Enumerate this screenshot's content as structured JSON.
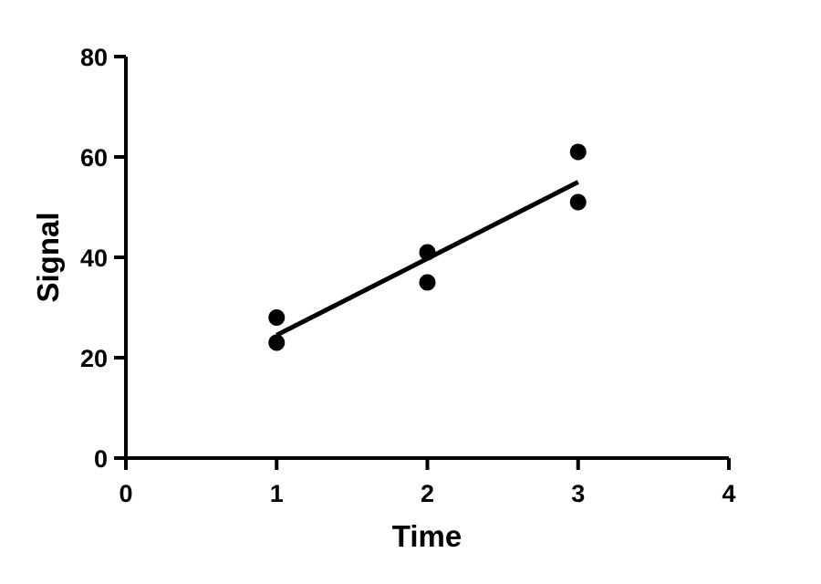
{
  "chart_data": {
    "type": "scatter",
    "title": "",
    "xlabel": "Time",
    "ylabel": "Signal",
    "xlim": [
      0,
      4
    ],
    "ylim": [
      0,
      80
    ],
    "x_ticks": [
      0,
      1,
      2,
      3,
      4
    ],
    "y_ticks": [
      0,
      20,
      40,
      60,
      80
    ],
    "grid": false,
    "legend": "none",
    "points": [
      {
        "x": 1,
        "y": 28
      },
      {
        "x": 1,
        "y": 23
      },
      {
        "x": 2,
        "y": 41
      },
      {
        "x": 2,
        "y": 35
      },
      {
        "x": 3,
        "y": 61
      },
      {
        "x": 3,
        "y": 51
      }
    ],
    "fit_line": {
      "x": [
        1,
        3
      ],
      "y": [
        24.5,
        55
      ]
    },
    "marker_color": "#000000",
    "line_color": "#000000"
  }
}
